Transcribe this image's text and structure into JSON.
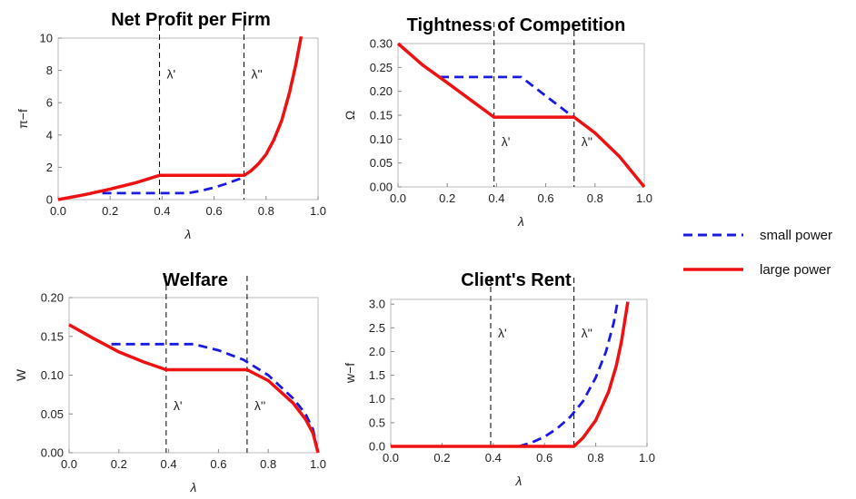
{
  "colors": {
    "small": "#1a1ae6",
    "large": "#ee1111",
    "guide": "#000000"
  },
  "legend": [
    {
      "key": "small",
      "label": "small power",
      "dash": true
    },
    {
      "key": "large",
      "label": "large power",
      "dash": false
    }
  ],
  "chart_data": [
    {
      "id": "profit",
      "type": "line",
      "title": "Net Profit per Firm",
      "xlabel": "λ",
      "ylabel": "π−f",
      "xlim": [
        0,
        1
      ],
      "ylim": [
        0,
        10
      ],
      "xticks": [
        0.0,
        0.2,
        0.4,
        0.6,
        0.8,
        1.0
      ],
      "yticks": [
        0,
        2,
        4,
        6,
        8,
        10
      ],
      "x_decimals": 1,
      "y_decimals": 0,
      "vlines": [
        {
          "x": 0.39,
          "label": "λ'"
        },
        {
          "x": 0.715,
          "label": "λ''"
        }
      ],
      "vlabel_y": 7.5,
      "series": [
        {
          "key": "small",
          "points": [
            [
              0.17,
              0.4
            ],
            [
              0.5,
              0.4
            ],
            [
              0.55,
              0.55
            ],
            [
              0.6,
              0.75
            ],
            [
              0.65,
              1.0
            ],
            [
              0.7,
              1.3
            ],
            [
              0.715,
              1.45
            ]
          ]
        },
        {
          "key": "large",
          "points": [
            [
              0,
              0
            ],
            [
              0.1,
              0.3
            ],
            [
              0.2,
              0.65
            ],
            [
              0.3,
              1.05
            ],
            [
              0.39,
              1.5
            ],
            [
              0.715,
              1.5
            ],
            [
              0.74,
              1.75
            ],
            [
              0.77,
              2.2
            ],
            [
              0.8,
              2.8
            ],
            [
              0.83,
              3.7
            ],
            [
              0.86,
              4.9
            ],
            [
              0.89,
              6.6
            ],
            [
              0.915,
              8.4
            ],
            [
              0.935,
              10.1
            ]
          ]
        }
      ]
    },
    {
      "id": "tightness",
      "type": "line",
      "title": "Tightness of Competition",
      "xlabel": "λ",
      "ylabel": "Ω",
      "xlim": [
        0,
        1
      ],
      "ylim": [
        0,
        0.3
      ],
      "xticks": [
        0.0,
        0.2,
        0.4,
        0.6,
        0.8,
        1.0
      ],
      "yticks": [
        0.0,
        0.05,
        0.1,
        0.15,
        0.2,
        0.25,
        0.3
      ],
      "x_decimals": 1,
      "y_decimals": 2,
      "vlines": [
        {
          "x": 0.39,
          "label": "λ'"
        },
        {
          "x": 0.715,
          "label": "λ''"
        }
      ],
      "vlabel_y": 0.085,
      "series": [
        {
          "key": "small",
          "points": [
            [
              0.17,
              0.23
            ],
            [
              0.5,
              0.23
            ],
            [
              0.715,
              0.145
            ]
          ]
        },
        {
          "key": "large",
          "points": [
            [
              0,
              0.3
            ],
            [
              0.1,
              0.255
            ],
            [
              0.2,
              0.218
            ],
            [
              0.3,
              0.18
            ],
            [
              0.39,
              0.146
            ],
            [
              0.715,
              0.146
            ],
            [
              0.8,
              0.113
            ],
            [
              0.9,
              0.063
            ],
            [
              1.0,
              0.0
            ]
          ]
        }
      ]
    },
    {
      "id": "welfare",
      "type": "line",
      "title": "Welfare",
      "xlabel": "λ",
      "ylabel": "W",
      "xlim": [
        0,
        1
      ],
      "ylim": [
        0,
        0.2
      ],
      "xticks": [
        0.0,
        0.2,
        0.4,
        0.6,
        0.8,
        1.0
      ],
      "yticks": [
        0.0,
        0.05,
        0.1,
        0.15,
        0.2
      ],
      "x_decimals": 1,
      "y_decimals": 2,
      "vlines": [
        {
          "x": 0.39,
          "label": "λ'"
        },
        {
          "x": 0.715,
          "label": "λ''"
        }
      ],
      "vlabel_y": 0.055,
      "series": [
        {
          "key": "small",
          "points": [
            [
              0.17,
              0.14
            ],
            [
              0.5,
              0.14
            ],
            [
              0.6,
              0.132
            ],
            [
              0.7,
              0.12
            ],
            [
              0.8,
              0.1
            ],
            [
              0.9,
              0.07
            ],
            [
              0.95,
              0.05
            ],
            [
              0.98,
              0.03
            ],
            [
              1.0,
              0.0
            ]
          ]
        },
        {
          "key": "large",
          "points": [
            [
              0,
              0.165
            ],
            [
              0.1,
              0.147
            ],
            [
              0.2,
              0.13
            ],
            [
              0.3,
              0.117
            ],
            [
              0.39,
              0.107
            ],
            [
              0.715,
              0.107
            ],
            [
              0.8,
              0.093
            ],
            [
              0.9,
              0.064
            ],
            [
              0.95,
              0.043
            ],
            [
              0.98,
              0.025
            ],
            [
              1.0,
              0.0
            ]
          ]
        }
      ]
    },
    {
      "id": "rent",
      "type": "line",
      "title": "Client's Rent",
      "xlabel": "λ",
      "ylabel": "w−f",
      "xlim": [
        0,
        1
      ],
      "ylim": [
        0,
        3.1
      ],
      "xticks": [
        0.0,
        0.2,
        0.4,
        0.6,
        0.8,
        1.0
      ],
      "yticks": [
        0.0,
        0.5,
        1.0,
        1.5,
        2.0,
        2.5,
        3.0
      ],
      "x_decimals": 1,
      "y_decimals": 1,
      "vlines": [
        {
          "x": 0.39,
          "label": "λ'"
        },
        {
          "x": 0.715,
          "label": "λ''"
        }
      ],
      "vlabel_y": 2.3,
      "series": [
        {
          "key": "small",
          "points": [
            [
              0.5,
              0.0
            ],
            [
              0.55,
              0.08
            ],
            [
              0.6,
              0.2
            ],
            [
              0.65,
              0.38
            ],
            [
              0.7,
              0.62
            ],
            [
              0.75,
              0.95
            ],
            [
              0.8,
              1.45
            ],
            [
              0.84,
              2.0
            ],
            [
              0.87,
              2.6
            ],
            [
              0.885,
              3.05
            ]
          ]
        },
        {
          "key": "large",
          "points": [
            [
              0,
              0
            ],
            [
              0.715,
              0
            ],
            [
              0.75,
              0.18
            ],
            [
              0.8,
              0.55
            ],
            [
              0.85,
              1.15
            ],
            [
              0.88,
              1.7
            ],
            [
              0.9,
              2.2
            ],
            [
              0.915,
              2.7
            ],
            [
              0.925,
              3.05
            ]
          ]
        }
      ]
    }
  ]
}
